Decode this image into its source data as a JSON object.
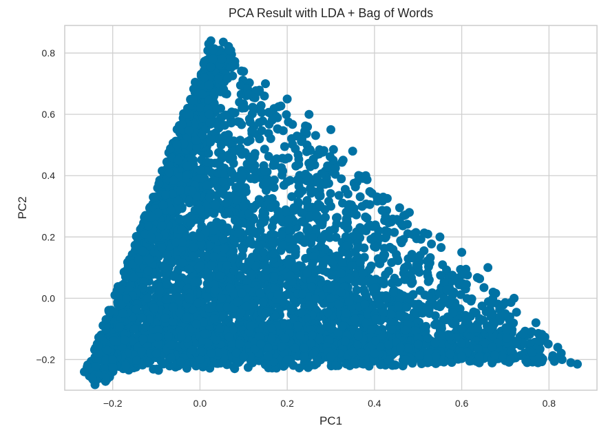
{
  "chart_data": {
    "type": "scatter",
    "title": "PCA Result with LDA + Bag of Words",
    "xlabel": "PC1",
    "ylabel": "PC2",
    "xlim": [
      -0.31,
      0.91
    ],
    "ylim": [
      -0.3,
      0.89
    ],
    "xticks": [
      -0.2,
      0.0,
      0.2,
      0.4,
      0.6,
      0.8
    ],
    "xtick_labels": [
      "−0.2",
      "0.0",
      "0.2",
      "0.4",
      "0.6",
      "0.8"
    ],
    "yticks": [
      -0.2,
      0.0,
      0.2,
      0.4,
      0.6,
      0.8
    ],
    "ytick_labels": [
      "−0.2",
      "0.0",
      "0.2",
      "0.4",
      "0.6",
      "0.8"
    ],
    "grid": true,
    "marker_color": "#0172a4",
    "grid_color": "#cfcfcf",
    "point_cloud": {
      "description_free_vertices": [
        [
          -0.265,
          -0.24
        ],
        [
          0.025,
          0.84
        ],
        [
          0.865,
          -0.215
        ]
      ],
      "dense_core_center": [
        -0.05,
        -0.05
      ]
    },
    "series": [
      {
        "points": [
          [
            -0.265,
            -0.24
          ],
          [
            0.025,
            0.84
          ],
          [
            0.865,
            -0.215
          ],
          [
            0.02,
            0.83
          ],
          [
            0.03,
            0.81
          ],
          [
            -0.195,
            0.01
          ],
          [
            -0.215,
            -0.07
          ],
          [
            -0.095,
            -0.235
          ],
          [
            -0.2,
            -0.2
          ],
          [
            -0.17,
            -0.22
          ],
          [
            -0.07,
            0.41
          ],
          [
            -0.05,
            0.45
          ],
          [
            -0.03,
            0.6
          ],
          [
            0.01,
            0.72
          ],
          [
            0.05,
            0.78
          ],
          [
            0.08,
            0.76
          ],
          [
            0.1,
            0.74
          ],
          [
            0.15,
            0.7
          ],
          [
            0.2,
            0.65
          ],
          [
            0.25,
            0.6
          ],
          [
            0.3,
            0.55
          ],
          [
            0.35,
            0.48
          ],
          [
            0.38,
            0.4
          ],
          [
            0.42,
            0.33
          ],
          [
            0.48,
            0.28
          ],
          [
            0.55,
            0.2
          ],
          [
            0.6,
            0.15
          ],
          [
            0.66,
            0.1
          ],
          [
            0.72,
            0.0
          ],
          [
            0.77,
            -0.08
          ],
          [
            0.82,
            -0.16
          ],
          [
            0.85,
            -0.21
          ],
          [
            0.7,
            -0.05
          ],
          [
            0.6,
            -0.1
          ],
          [
            0.5,
            -0.15
          ],
          [
            0.4,
            -0.18
          ],
          [
            0.3,
            -0.19
          ],
          [
            0.2,
            -0.2
          ],
          [
            0.1,
            -0.19
          ],
          [
            0.0,
            -0.2
          ],
          [
            -0.1,
            -0.18
          ],
          [
            0.354,
            -0.21
          ],
          [
            0.6,
            -0.19
          ],
          [
            0.75,
            -0.21
          ],
          [
            0.83,
            -0.2
          ],
          [
            0.12,
            0.45
          ],
          [
            0.2,
            0.38
          ],
          [
            0.1,
            0.3
          ],
          [
            0.3,
            0.3
          ],
          [
            0.4,
            0.2
          ],
          [
            0.5,
            0.1
          ],
          [
            0.22,
            0.1
          ],
          [
            0.1,
            0.1
          ],
          [
            0.0,
            0.2
          ],
          [
            -0.08,
            0.1
          ],
          [
            -0.12,
            0.0
          ],
          [
            -0.15,
            -0.1
          ],
          [
            0.05,
            0.0
          ],
          [
            0.15,
            -0.05
          ],
          [
            0.3,
            0.0
          ]
        ]
      }
    ]
  }
}
